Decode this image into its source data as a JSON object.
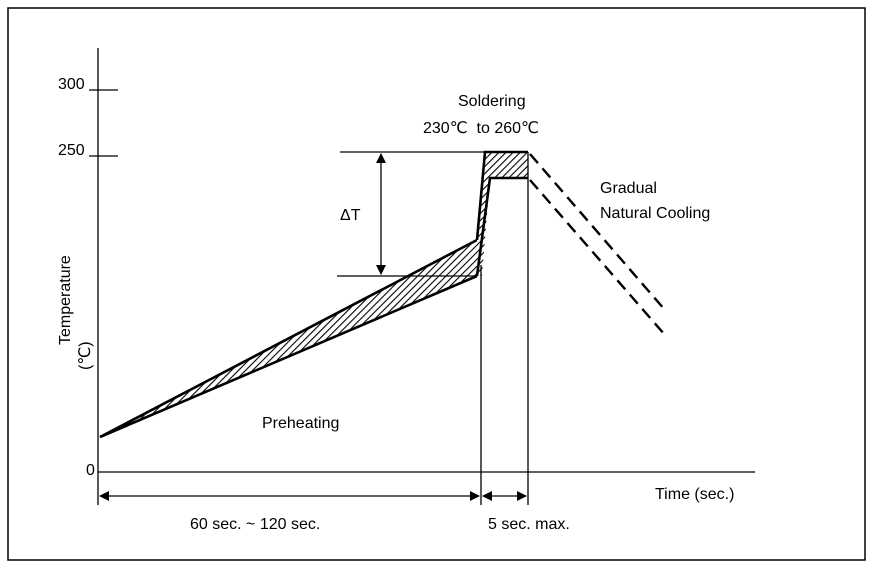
{
  "diagram": {
    "y_axis": {
      "title": "Temperature",
      "unit": "(℃)",
      "ticks": [
        "300",
        "250",
        "0"
      ]
    },
    "x_axis": {
      "title": "Time (sec.)"
    },
    "labels": {
      "soldering": "Soldering",
      "soldering_range": "230℃  to 260℃",
      "cooling_line1": "Gradual",
      "cooling_line2": "Natural Cooling",
      "delta_t": "ΔT",
      "preheating": "Preheating",
      "preheat_duration": "60 sec. ~ 120 sec.",
      "solder_duration": "5 sec. max."
    },
    "colors": {
      "line": "#000000",
      "background": "#ffffff"
    }
  }
}
